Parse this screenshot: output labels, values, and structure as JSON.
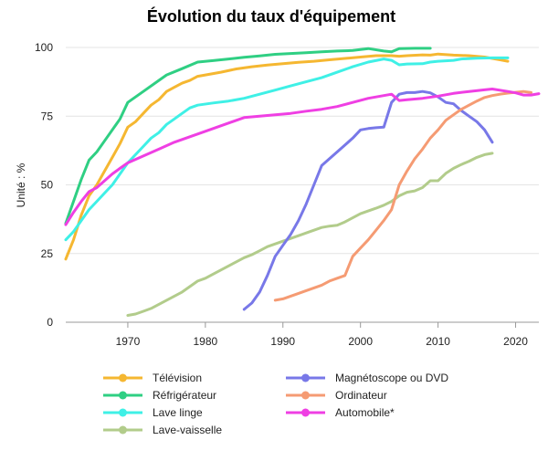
{
  "chart_data": {
    "type": "line",
    "title": "Évolution du taux d'équipement",
    "xlabel": "",
    "ylabel": "Unité : %",
    "xlim": [
      1962,
      2023
    ],
    "ylim": [
      0,
      100
    ],
    "xticks": [
      1970,
      1980,
      1990,
      2000,
      2010,
      2020
    ],
    "yticks": [
      0,
      25,
      50,
      75,
      100
    ],
    "grid": true,
    "legend_position": "bottom",
    "series": [
      {
        "name": "Télévision",
        "color": "#f5b731",
        "points": [
          [
            1962,
            23
          ],
          [
            1963,
            30
          ],
          [
            1964,
            39
          ],
          [
            1965,
            46
          ],
          [
            1966,
            50
          ],
          [
            1967,
            55
          ],
          [
            1968,
            60
          ],
          [
            1969,
            65
          ],
          [
            1970,
            71
          ],
          [
            1971,
            73
          ],
          [
            1972,
            76
          ],
          [
            1973,
            79
          ],
          [
            1974,
            81
          ],
          [
            1975,
            84
          ],
          [
            1976,
            85.5
          ],
          [
            1977,
            87
          ],
          [
            1978,
            88
          ],
          [
            1979,
            89.5
          ],
          [
            1980,
            90
          ],
          [
            1982,
            91
          ],
          [
            1984,
            92.2
          ],
          [
            1986,
            93
          ],
          [
            1988,
            93.6
          ],
          [
            1990,
            94.1
          ],
          [
            1992,
            94.6
          ],
          [
            1994,
            95
          ],
          [
            1996,
            95.5
          ],
          [
            1998,
            96
          ],
          [
            2000,
            96.5
          ],
          [
            2002,
            97
          ],
          [
            2004,
            97
          ],
          [
            2005,
            96.8
          ],
          [
            2006,
            97
          ],
          [
            2008,
            97.3
          ],
          [
            2009,
            97.2
          ],
          [
            2010,
            97.6
          ],
          [
            2012,
            97.2
          ],
          [
            2014,
            97
          ],
          [
            2016,
            96.5
          ],
          [
            2018,
            95.5
          ],
          [
            2019,
            95
          ]
        ]
      },
      {
        "name": "Réfrigérateur",
        "color": "#2fcf83",
        "points": [
          [
            1962,
            36
          ],
          [
            1963,
            44
          ],
          [
            1964,
            52
          ],
          [
            1965,
            59
          ],
          [
            1966,
            62
          ],
          [
            1967,
            66
          ],
          [
            1968,
            70
          ],
          [
            1969,
            74
          ],
          [
            1970,
            80
          ],
          [
            1972,
            84
          ],
          [
            1974,
            88
          ],
          [
            1975,
            90
          ],
          [
            1977,
            92.3
          ],
          [
            1979,
            94.7
          ],
          [
            1981,
            95.2
          ],
          [
            1983,
            95.8
          ],
          [
            1985,
            96.4
          ],
          [
            1987,
            96.9
          ],
          [
            1989,
            97.5
          ],
          [
            1991,
            97.8
          ],
          [
            1993,
            98.1
          ],
          [
            1995,
            98.4
          ],
          [
            1997,
            98.7
          ],
          [
            1999,
            98.9
          ],
          [
            2001,
            99.6
          ],
          [
            2003,
            98.7
          ],
          [
            2004,
            98.4
          ],
          [
            2005,
            99.6
          ],
          [
            2007,
            99.7
          ],
          [
            2009,
            99.7
          ]
        ]
      },
      {
        "name": "Lave linge",
        "color": "#3ff0e6",
        "points": [
          [
            1962,
            30
          ],
          [
            1963,
            33
          ],
          [
            1964,
            37
          ],
          [
            1965,
            41
          ],
          [
            1966,
            44
          ],
          [
            1967,
            47
          ],
          [
            1968,
            50
          ],
          [
            1969,
            54
          ],
          [
            1970,
            58
          ],
          [
            1971,
            61
          ],
          [
            1972,
            64
          ],
          [
            1973,
            67
          ],
          [
            1974,
            69
          ],
          [
            1975,
            72
          ],
          [
            1976,
            74
          ],
          [
            1977,
            76
          ],
          [
            1978,
            78
          ],
          [
            1979,
            79
          ],
          [
            1981,
            79.8
          ],
          [
            1983,
            80.5
          ],
          [
            1985,
            81.5
          ],
          [
            1987,
            83
          ],
          [
            1989,
            84.5
          ],
          [
            1991,
            86
          ],
          [
            1993,
            87.5
          ],
          [
            1995,
            89
          ],
          [
            1997,
            91
          ],
          [
            1999,
            93
          ],
          [
            2001,
            94.7
          ],
          [
            2003,
            95.8
          ],
          [
            2004,
            95.3
          ],
          [
            2005,
            93.7
          ],
          [
            2006,
            94
          ],
          [
            2008,
            94.1
          ],
          [
            2009,
            94.7
          ],
          [
            2010,
            95
          ],
          [
            2012,
            95.3
          ],
          [
            2013,
            95.8
          ],
          [
            2015,
            96.1
          ],
          [
            2017,
            96.2
          ],
          [
            2019,
            96.2
          ]
        ]
      },
      {
        "name": "Lave-vaisselle",
        "color": "#b2cc8b",
        "points": [
          [
            1970,
            2.5
          ],
          [
            1971,
            3
          ],
          [
            1972,
            4
          ],
          [
            1973,
            5
          ],
          [
            1974,
            6.5
          ],
          [
            1975,
            8
          ],
          [
            1976,
            9.5
          ],
          [
            1977,
            11
          ],
          [
            1978,
            13
          ],
          [
            1979,
            15
          ],
          [
            1980,
            16
          ],
          [
            1981,
            17.5
          ],
          [
            1982,
            19
          ],
          [
            1983,
            20.5
          ],
          [
            1984,
            22
          ],
          [
            1985,
            23.5
          ],
          [
            1986,
            24.6
          ],
          [
            1987,
            26
          ],
          [
            1988,
            27.5
          ],
          [
            1989,
            28.5
          ],
          [
            1990,
            29.5
          ],
          [
            1991,
            30.5
          ],
          [
            1992,
            31.5
          ],
          [
            1993,
            32.5
          ],
          [
            1994,
            33.5
          ],
          [
            1995,
            34.5
          ],
          [
            1996,
            35
          ],
          [
            1997,
            35.3
          ],
          [
            1998,
            36.5
          ],
          [
            1999,
            38
          ],
          [
            2000,
            39.5
          ],
          [
            2001,
            40.5
          ],
          [
            2002,
            41.5
          ],
          [
            2003,
            42.6
          ],
          [
            2004,
            44
          ],
          [
            2005,
            46
          ],
          [
            2006,
            47.3
          ],
          [
            2007,
            47.8
          ],
          [
            2008,
            49
          ],
          [
            2009,
            51.5
          ],
          [
            2010,
            51.5
          ],
          [
            2011,
            54.2
          ],
          [
            2012,
            56
          ],
          [
            2013,
            57.4
          ],
          [
            2014,
            58.6
          ],
          [
            2015,
            60
          ],
          [
            2016,
            61
          ],
          [
            2017,
            61.5
          ]
        ]
      },
      {
        "name": "Magnétoscope ou DVD",
        "color": "#7878e8",
        "points": [
          [
            1985,
            4.7
          ],
          [
            1986,
            7
          ],
          [
            1987,
            11
          ],
          [
            1988,
            17
          ],
          [
            1989,
            24
          ],
          [
            1990,
            28
          ],
          [
            1991,
            32
          ],
          [
            1992,
            37
          ],
          [
            1993,
            43
          ],
          [
            1994,
            50
          ],
          [
            1995,
            57
          ],
          [
            1996,
            59.5
          ],
          [
            1997,
            62
          ],
          [
            1998,
            64.5
          ],
          [
            1999,
            67
          ],
          [
            2000,
            70
          ],
          [
            2001,
            70.5
          ],
          [
            2002,
            70.8
          ],
          [
            2003,
            71
          ],
          [
            2004,
            80
          ],
          [
            2005,
            83
          ],
          [
            2006,
            83.6
          ],
          [
            2007,
            83.6
          ],
          [
            2008,
            84
          ],
          [
            2009,
            83.5
          ],
          [
            2010,
            82
          ],
          [
            2011,
            80
          ],
          [
            2012,
            79.5
          ],
          [
            2013,
            77
          ],
          [
            2014,
            75
          ],
          [
            2015,
            73
          ],
          [
            2016,
            70
          ],
          [
            2017,
            65.5
          ]
        ]
      },
      {
        "name": "Ordinateur",
        "color": "#f59b73",
        "points": [
          [
            1989,
            8
          ],
          [
            1990,
            8.5
          ],
          [
            1991,
            9.5
          ],
          [
            1992,
            10.5
          ],
          [
            1993,
            11.5
          ],
          [
            1994,
            12.5
          ],
          [
            1995,
            13.5
          ],
          [
            1996,
            15
          ],
          [
            1997,
            16
          ],
          [
            1998,
            17
          ],
          [
            1999,
            24
          ],
          [
            2000,
            27
          ],
          [
            2001,
            30
          ],
          [
            2002,
            33.5
          ],
          [
            2003,
            37
          ],
          [
            2004,
            41
          ],
          [
            2005,
            50
          ],
          [
            2006,
            55
          ],
          [
            2007,
            59.5
          ],
          [
            2008,
            63
          ],
          [
            2009,
            67
          ],
          [
            2010,
            70
          ],
          [
            2011,
            73.5
          ],
          [
            2012,
            75.5
          ],
          [
            2013,
            77.5
          ],
          [
            2014,
            79
          ],
          [
            2015,
            80.5
          ],
          [
            2016,
            81.8
          ],
          [
            2017,
            82.5
          ],
          [
            2018,
            83
          ],
          [
            2019,
            83.4
          ],
          [
            2020,
            83.7
          ],
          [
            2021,
            84
          ],
          [
            2022,
            83.6
          ]
        ]
      },
      {
        "name": "Automobile*",
        "color": "#ef3fe3",
        "points": [
          [
            1962,
            35.5
          ],
          [
            1963,
            40
          ],
          [
            1964,
            44
          ],
          [
            1965,
            47.5
          ],
          [
            1966,
            49
          ],
          [
            1967,
            51.5
          ],
          [
            1968,
            54
          ],
          [
            1969,
            56
          ],
          [
            1970,
            58
          ],
          [
            1972,
            60.5
          ],
          [
            1974,
            63
          ],
          [
            1976,
            65.5
          ],
          [
            1978,
            67.5
          ],
          [
            1980,
            69.5
          ],
          [
            1982,
            71.5
          ],
          [
            1984,
            73.5
          ],
          [
            1985,
            74.5
          ],
          [
            1987,
            75
          ],
          [
            1989,
            75.5
          ],
          [
            1991,
            76
          ],
          [
            1993,
            76.8
          ],
          [
            1995,
            77.5
          ],
          [
            1997,
            78.5
          ],
          [
            1999,
            80
          ],
          [
            2001,
            81.5
          ],
          [
            2003,
            82.5
          ],
          [
            2004,
            83
          ],
          [
            2005,
            80.7
          ],
          [
            2006,
            81
          ],
          [
            2008,
            81.5
          ],
          [
            2010,
            82.3
          ],
          [
            2012,
            83.3
          ],
          [
            2014,
            84
          ],
          [
            2016,
            84.6
          ],
          [
            2017,
            84.9
          ],
          [
            2019,
            84
          ],
          [
            2020,
            83.5
          ],
          [
            2021,
            82.7
          ],
          [
            2022,
            82.7
          ],
          [
            2023,
            83.2
          ]
        ]
      }
    ]
  }
}
